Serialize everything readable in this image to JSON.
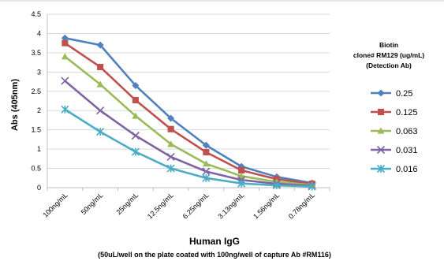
{
  "chart_data": {
    "type": "line",
    "title": "",
    "xlabel": "Human IgG",
    "xlabel_note": "(50uL/well on the plate coated with 100ng/well of capture Ab #RM116)",
    "ylabel": "Abs (405nm)",
    "ylim": [
      0,
      4.5
    ],
    "yticks": [
      "0",
      "0.5",
      "1",
      "1.5",
      "2",
      "2.5",
      "3",
      "3.5",
      "4",
      "4.5"
    ],
    "grid": true,
    "legend_position": "right",
    "legend_title": [
      "Biotin",
      "clone# RM129 (ug/mL)",
      "(Detection Ab)"
    ],
    "categories": [
      "100ng/mL",
      "50ng/mL",
      "25ng/mL",
      "12.5ng/mL",
      "6.25ng/mL",
      "3.13ng/mL",
      "1.56ng/mL",
      "0.78ng/mL"
    ],
    "series": [
      {
        "name": "0.25",
        "color": "#4f81bd",
        "marker": "diamond",
        "values": [
          3.88,
          3.7,
          2.65,
          1.8,
          1.1,
          0.55,
          0.28,
          0.12
        ]
      },
      {
        "name": "0.125",
        "color": "#c0504d",
        "marker": "square",
        "values": [
          3.75,
          3.13,
          2.27,
          1.52,
          0.92,
          0.45,
          0.22,
          0.1
        ]
      },
      {
        "name": "0.063",
        "color": "#9bbb59",
        "marker": "triangle",
        "values": [
          3.4,
          2.68,
          1.86,
          1.13,
          0.62,
          0.3,
          0.15,
          0.07
        ]
      },
      {
        "name": "0.031",
        "color": "#8064a2",
        "marker": "x",
        "values": [
          2.77,
          2.0,
          1.35,
          0.8,
          0.42,
          0.2,
          0.1,
          0.05
        ]
      },
      {
        "name": "0.016",
        "color": "#4bacc6",
        "marker": "star",
        "values": [
          2.03,
          1.45,
          0.93,
          0.5,
          0.25,
          0.11,
          0.06,
          0.03
        ]
      }
    ]
  }
}
